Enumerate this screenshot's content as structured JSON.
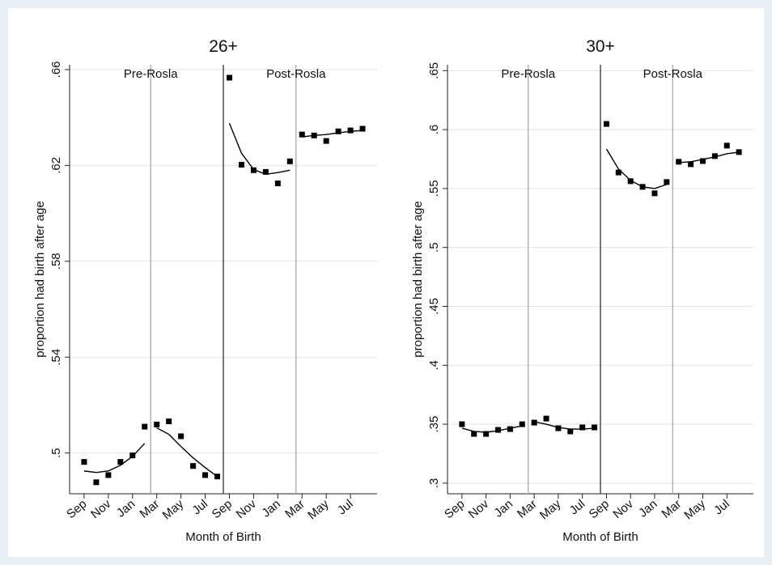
{
  "chart_data": [
    {
      "type": "scatter",
      "title": "26+",
      "xlabel": "Month of Birth",
      "ylabel": "proportion had birth after age",
      "categories": [
        "Sep",
        null,
        "Nov",
        null,
        "Jan",
        null,
        "Mar",
        null,
        "May",
        null,
        "Jul",
        null,
        "Sep",
        null,
        "Nov",
        null,
        "Jan",
        null,
        "Mar",
        null,
        "May",
        null,
        "Jul",
        null
      ],
      "series": [
        {
          "style": "marker",
          "color": "#000000",
          "values": [
            0.4963,
            0.4878,
            0.4908,
            0.4963,
            0.499,
            0.511,
            0.5119,
            0.5132,
            0.507,
            0.4946,
            0.4908,
            0.4902,
            0.6566,
            0.6203,
            0.618,
            0.6173,
            0.6125,
            0.6217,
            0.6329,
            0.6325,
            0.6302,
            0.6342,
            0.6346,
            0.6353
          ]
        },
        {
          "style": "line",
          "color": "#000000",
          "values": [
            0.4925,
            0.4919,
            0.4925,
            0.4949,
            0.4986,
            0.504,
            0.5105,
            0.5078,
            0.5027,
            0.498,
            0.4939,
            0.4902,
            0.6376,
            0.6251,
            0.6183,
            0.6163,
            0.617,
            0.618,
            0.6319,
            0.6325,
            0.6329,
            0.6336,
            0.6342,
            0.6346
          ]
        }
      ],
      "vlines": [
        {
          "x": 5.5,
          "color": "#aaaaaa",
          "label": "Pre-Rosla"
        },
        {
          "x": 11.5,
          "color": "#333333"
        },
        {
          "x": 17.5,
          "color": "#aaaaaa",
          "label": "Post-Rosla"
        }
      ],
      "ylim": [
        0.483,
        0.662
      ],
      "yticks": [
        {
          "value": 0.5,
          "label": ".5"
        },
        {
          "value": 0.54,
          "label": ".54"
        },
        {
          "value": 0.58,
          "label": ".58"
        },
        {
          "value": 0.62,
          "label": ".62"
        },
        {
          "value": 0.66,
          "label": ".66"
        }
      ],
      "grid": true
    },
    {
      "type": "scatter",
      "title": "30+",
      "xlabel": "Month of Birth",
      "ylabel": "proportion had birth after age",
      "categories": [
        "Sep",
        null,
        "Nov",
        null,
        "Jan",
        null,
        "Mar",
        null,
        "May",
        null,
        "Jul",
        null,
        "Sep",
        null,
        "Nov",
        null,
        "Jan",
        null,
        "Mar",
        null,
        "May",
        null,
        "Jul",
        null
      ],
      "series": [
        {
          "style": "marker",
          "color": "#000000",
          "values": [
            0.35,
            0.3418,
            0.3418,
            0.3452,
            0.3459,
            0.35,
            0.3514,
            0.3548,
            0.3466,
            0.3439,
            0.3473,
            0.3473,
            0.6048,
            0.5636,
            0.5562,
            0.5514,
            0.5459,
            0.5555,
            0.5727,
            0.5706,
            0.5733,
            0.5775,
            0.5864,
            0.5809
          ]
        },
        {
          "style": "line",
          "color": "#000000",
          "values": [
            0.3466,
            0.3439,
            0.3432,
            0.3445,
            0.3466,
            0.3486,
            0.3521,
            0.35,
            0.3473,
            0.3459,
            0.3459,
            0.3466,
            0.5836,
            0.5665,
            0.5569,
            0.5514,
            0.55,
            0.5535,
            0.572,
            0.5727,
            0.5747,
            0.5768,
            0.5795,
            0.5809
          ]
        }
      ],
      "vlines": [
        {
          "x": 5.5,
          "color": "#aaaaaa",
          "label": "Pre-Rosla"
        },
        {
          "x": 11.5,
          "color": "#333333"
        },
        {
          "x": 17.5,
          "color": "#aaaaaa",
          "label": "Post-Rosla"
        }
      ],
      "ylim": [
        0.291,
        0.655
      ],
      "yticks": [
        {
          "value": 0.3,
          "label": ".3"
        },
        {
          "value": 0.35,
          "label": ".35"
        },
        {
          "value": 0.4,
          "label": ".4"
        },
        {
          "value": 0.45,
          "label": ".45"
        },
        {
          "value": 0.5,
          "label": ".5"
        },
        {
          "value": 0.55,
          "label": ".55"
        },
        {
          "value": 0.6,
          "label": ".6"
        },
        {
          "value": 0.65,
          "label": ".65"
        }
      ],
      "grid": true
    }
  ]
}
